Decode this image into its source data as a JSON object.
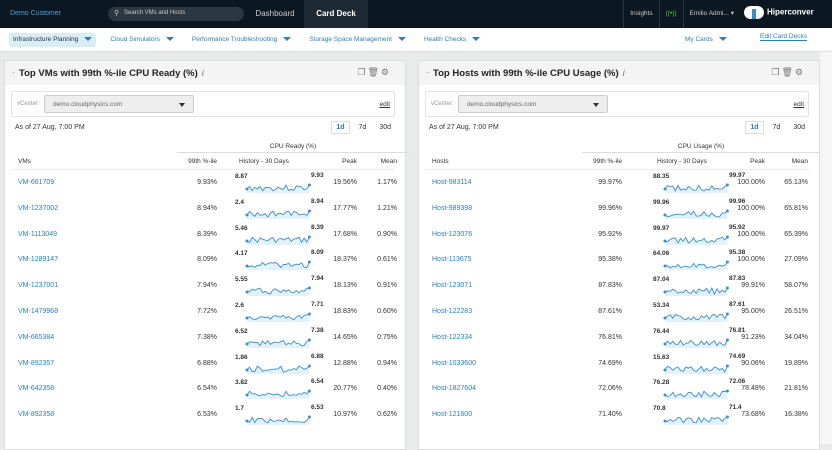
{
  "topbar": {
    "customer": "Demo Customer",
    "search_placeholder": "Search VMs and Hosts",
    "tabs": [
      "Dashboard",
      "Card Deck"
    ],
    "active_tab": "Card Deck",
    "insights": "Insights",
    "user": "Emilio Admi... ▾",
    "logo_text": "Hiperconver"
  },
  "subnav": {
    "items": [
      "Infrastructure Planning",
      "Cloud Simulators",
      "Performance Troubleshooting",
      "Storage Space Management",
      "Health Checks"
    ],
    "my_cards": "My Cards",
    "edit_decks": "Edit Card Decks"
  },
  "colors": {
    "accent": "#2a7fb8",
    "topbar": "#0b1821",
    "spark": "#3b8fd0"
  },
  "cards": [
    {
      "title": "Top VMs with 99th %-ile CPU Ready (%)",
      "vcenter_label": "vCenter:",
      "vcenter": "demo.cloudphysics.com",
      "edit": "edit",
      "as_of": "As of 27 Aug, 7:00 PM",
      "ranges": [
        "1d",
        "7d",
        "30d"
      ],
      "active_range": "1d",
      "group": "CPU Ready (%)",
      "headers": [
        "VMs",
        "99th %-ile",
        "History - 30 Days",
        "Peak",
        "Mean"
      ],
      "rows": [
        {
          "name": "VM-661709",
          "p99": "9.93%",
          "start": "8.87",
          "end": "9.93",
          "peak": "19.56%",
          "mean": "1.17%"
        },
        {
          "name": "VM-1237002",
          "p99": "8.94%",
          "start": "2.4",
          "end": "8.94",
          "peak": "17.77%",
          "mean": "1.21%"
        },
        {
          "name": "VM-1113049",
          "p99": "8.39%",
          "start": "5.46",
          "end": "8.39",
          "peak": "17.68%",
          "mean": "0.90%"
        },
        {
          "name": "VM-1289147",
          "p99": "8.09%",
          "start": "4.17",
          "end": "8.09",
          "peak": "18.37%",
          "mean": "0.61%"
        },
        {
          "name": "VM-1237001",
          "p99": "7.94%",
          "start": "5.55",
          "end": "7.94",
          "peak": "18.13%",
          "mean": "0.91%"
        },
        {
          "name": "VM-1479968",
          "p99": "7.72%",
          "start": "2.6",
          "end": "7.71",
          "peak": "18.83%",
          "mean": "0.60%"
        },
        {
          "name": "VM-665384",
          "p99": "7.38%",
          "start": "6.52",
          "end": "7.38",
          "peak": "14.65%",
          "mean": "0.75%"
        },
        {
          "name": "VM-892357",
          "p99": "6.88%",
          "start": "1.86",
          "end": "6.88",
          "peak": "12.88%",
          "mean": "0.94%"
        },
        {
          "name": "VM-642358",
          "p99": "6.54%",
          "start": "3.82",
          "end": "6.54",
          "peak": "20.77%",
          "mean": "0.40%"
        },
        {
          "name": "VM-892358",
          "p99": "6.53%",
          "start": "1.7",
          "end": "6.53",
          "peak": "10.97%",
          "mean": "0.62%"
        }
      ]
    },
    {
      "title": "Top Hosts with 99th %-ile CPU Usage (%)",
      "vcenter_label": "vCenter:",
      "vcenter": "demo.cloudphysics.com",
      "edit": "edit",
      "as_of": "As of 27 Aug, 7:00 PM",
      "ranges": [
        "1d",
        "7d",
        "30d"
      ],
      "active_range": "1d",
      "group": "CPU Usage (%)",
      "headers": [
        "Hosts",
        "99th %-ile",
        "History - 30 Days",
        "Peak",
        "Mean"
      ],
      "rows": [
        {
          "name": "Host-983114",
          "p99": "99.97%",
          "start": "88.35",
          "end": "99.97",
          "peak": "100.00%",
          "mean": "65.13%"
        },
        {
          "name": "Host-989398",
          "p99": "99.96%",
          "start": "99.96",
          "end": "99.96",
          "peak": "100.00%",
          "mean": "65.81%"
        },
        {
          "name": "Host-123076",
          "p99": "95.92%",
          "start": "99.97",
          "end": "95.92",
          "peak": "100.00%",
          "mean": "65.39%"
        },
        {
          "name": "Host-113675",
          "p99": "95.38%",
          "start": "64.06",
          "end": "95.38",
          "peak": "100.00%",
          "mean": "27.09%"
        },
        {
          "name": "Host-123071",
          "p99": "87.83%",
          "start": "87.04",
          "end": "87.83",
          "peak": "99.91%",
          "mean": "58.07%"
        },
        {
          "name": "Host-122283",
          "p99": "87.61%",
          "start": "53.34",
          "end": "87.61",
          "peak": "95.00%",
          "mean": "26.51%"
        },
        {
          "name": "Host-122334",
          "p99": "76.81%",
          "start": "76.44",
          "end": "76.81",
          "peak": "91.23%",
          "mean": "34.04%"
        },
        {
          "name": "Host-1033600",
          "p99": "74.69%",
          "start": "15.63",
          "end": "74.69",
          "peak": "90.06%",
          "mean": "19.89%"
        },
        {
          "name": "Host-1827604",
          "p99": "72.06%",
          "start": "76.28",
          "end": "72.06",
          "peak": "78.48%",
          "mean": "21.81%"
        },
        {
          "name": "Host-121600",
          "p99": "71.40%",
          "start": "70.8",
          "end": "71.4",
          "peak": "73.68%",
          "mean": "16.38%"
        }
      ]
    }
  ]
}
